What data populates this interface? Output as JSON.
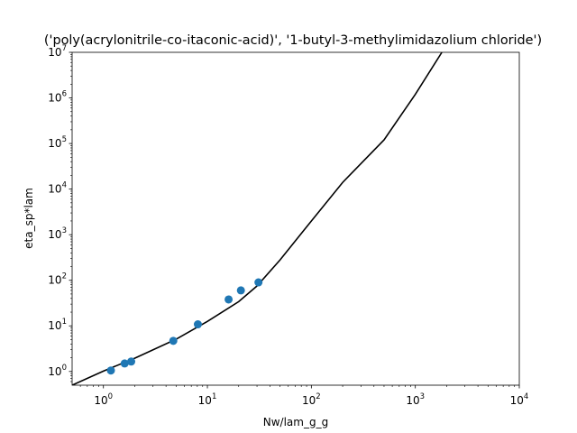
{
  "chart_data": {
    "type": "scatter",
    "title": "('poly(acrylonitrile-co-itaconic-acid)', '1-butyl-3-methylimidazolium chloride')",
    "xlabel": "Nw/lam_g_g",
    "ylabel": "eta_sp*lam",
    "x_scale": "log",
    "y_scale": "log",
    "xlim": [
      0.5,
      10000
    ],
    "ylim": [
      0.5,
      10000000
    ],
    "grid": false,
    "x_ticks": [
      {
        "value": 1,
        "base": "10",
        "exp": "0"
      },
      {
        "value": 10,
        "base": "10",
        "exp": "1"
      },
      {
        "value": 100,
        "base": "10",
        "exp": "2"
      },
      {
        "value": 1000,
        "base": "10",
        "exp": "3"
      },
      {
        "value": 10000,
        "base": "10",
        "exp": "4"
      }
    ],
    "y_ticks": [
      {
        "value": 1,
        "base": "10",
        "exp": "0"
      },
      {
        "value": 10,
        "base": "10",
        "exp": "1"
      },
      {
        "value": 100,
        "base": "10",
        "exp": "2"
      },
      {
        "value": 1000,
        "base": "10",
        "exp": "3"
      },
      {
        "value": 10000,
        "base": "10",
        "exp": "4"
      },
      {
        "value": 100000,
        "base": "10",
        "exp": "5"
      },
      {
        "value": 1000000,
        "base": "10",
        "exp": "6"
      },
      {
        "value": 10000000,
        "base": "10",
        "exp": "7"
      }
    ],
    "series": [
      {
        "kind": "scatter",
        "color": "#1f77b4",
        "points": [
          {
            "x": 1.18,
            "y": 1.05
          },
          {
            "x": 1.6,
            "y": 1.5
          },
          {
            "x": 1.85,
            "y": 1.65
          },
          {
            "x": 4.7,
            "y": 4.7
          },
          {
            "x": 8.1,
            "y": 10.8
          },
          {
            "x": 16.0,
            "y": 38
          },
          {
            "x": 21.0,
            "y": 60
          },
          {
            "x": 31.0,
            "y": 90
          }
        ]
      },
      {
        "kind": "line",
        "color": "#000000",
        "points": [
          {
            "x": 0.5,
            "y": 0.5
          },
          {
            "x": 1,
            "y": 1.02
          },
          {
            "x": 2,
            "y": 1.95
          },
          {
            "x": 5,
            "y": 5.1
          },
          {
            "x": 10,
            "y": 12.5
          },
          {
            "x": 20,
            "y": 34
          },
          {
            "x": 30,
            "y": 75
          },
          {
            "x": 50,
            "y": 280
          },
          {
            "x": 100,
            "y": 2000
          },
          {
            "x": 200,
            "y": 14000
          },
          {
            "x": 500,
            "y": 120000
          },
          {
            "x": 1000,
            "y": 1200000
          },
          {
            "x": 1800,
            "y": 10000000
          }
        ]
      }
    ]
  }
}
